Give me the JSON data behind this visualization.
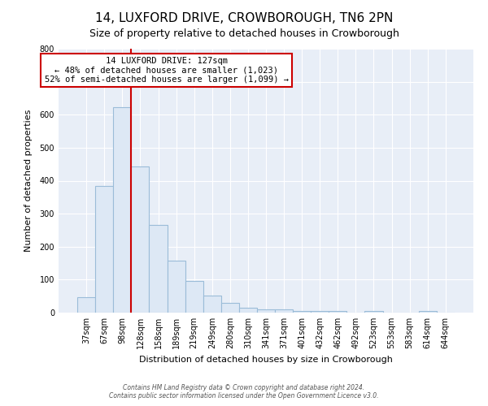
{
  "title": "14, LUXFORD DRIVE, CROWBOROUGH, TN6 2PN",
  "subtitle": "Size of property relative to detached houses in Crowborough",
  "xlabel": "Distribution of detached houses by size in Crowborough",
  "ylabel": "Number of detached properties",
  "bin_labels": [
    "37sqm",
    "67sqm",
    "98sqm",
    "128sqm",
    "158sqm",
    "189sqm",
    "219sqm",
    "249sqm",
    "280sqm",
    "310sqm",
    "341sqm",
    "371sqm",
    "401sqm",
    "432sqm",
    "462sqm",
    "492sqm",
    "523sqm",
    "553sqm",
    "583sqm",
    "614sqm",
    "644sqm"
  ],
  "bar_heights": [
    48,
    385,
    623,
    443,
    265,
    157,
    97,
    52,
    30,
    14,
    11,
    11,
    5,
    5,
    5,
    0,
    5,
    0,
    0,
    5,
    0
  ],
  "bar_color": "#dde8f5",
  "bar_edge_color": "#9bbcd8",
  "vline_color": "#cc0000",
  "vline_bin_index": 3,
  "annotation_title": "14 LUXFORD DRIVE: 127sqm",
  "annotation_line1": "← 48% of detached houses are smaller (1,023)",
  "annotation_line2": "52% of semi-detached houses are larger (1,099) →",
  "annotation_box_facecolor": "#ffffff",
  "annotation_box_edgecolor": "#cc0000",
  "ylim": [
    0,
    800
  ],
  "yticks": [
    0,
    100,
    200,
    300,
    400,
    500,
    600,
    700,
    800
  ],
  "footer1": "Contains HM Land Registry data © Crown copyright and database right 2024.",
  "footer2": "Contains public sector information licensed under the Open Government Licence v3.0.",
  "bg_color": "#ffffff",
  "plot_bg_color": "#e8eef7",
  "grid_color": "#ffffff",
  "title_fontsize": 11,
  "subtitle_fontsize": 9,
  "axis_label_fontsize": 8,
  "tick_fontsize": 7,
  "annotation_fontsize": 7.5,
  "footer_fontsize": 5.5
}
